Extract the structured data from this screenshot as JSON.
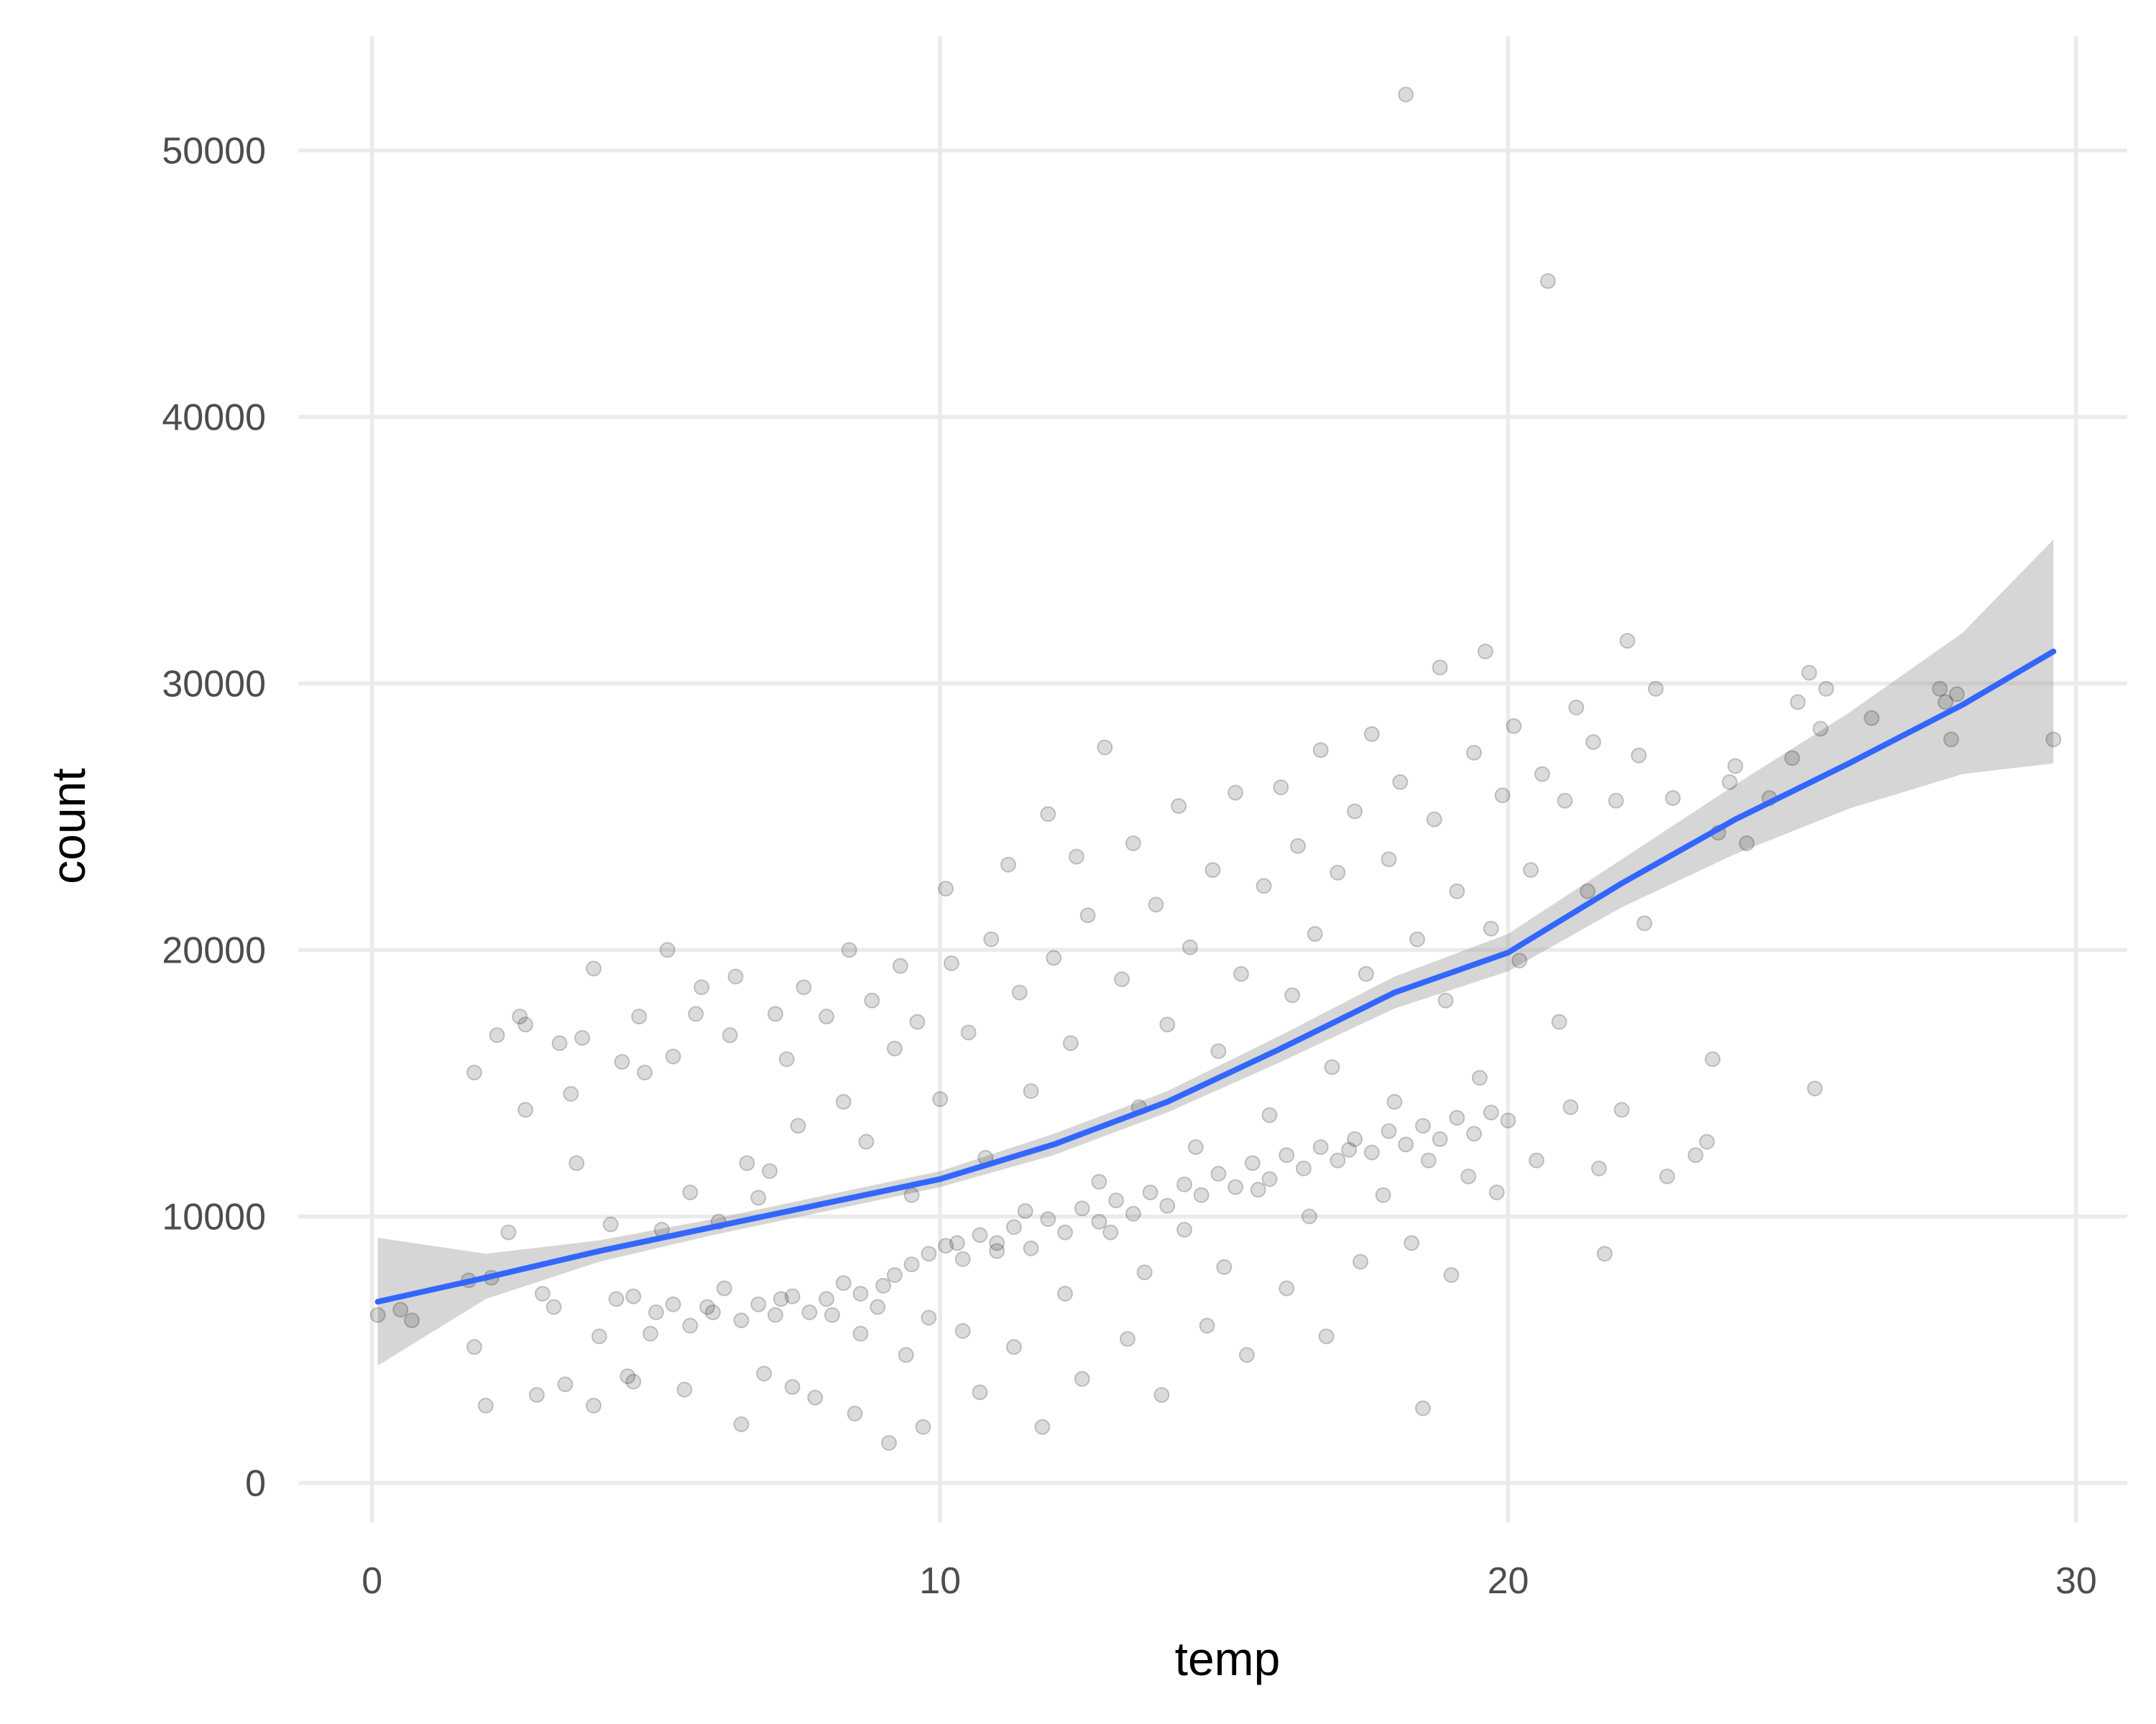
{
  "chart_data": {
    "type": "scatter",
    "title": "",
    "xlabel": "temp",
    "ylabel": "count",
    "xlim": [
      -1.3,
      30.9
    ],
    "ylim": [
      -1500,
      54300
    ],
    "x_ticks": [
      0,
      10,
      20,
      30
    ],
    "y_ticks": [
      0,
      10000,
      20000,
      30000,
      40000,
      50000
    ],
    "x_tick_labels": [
      "0",
      "10",
      "20",
      "30"
    ],
    "y_tick_labels": [
      "0",
      "10000",
      "20000",
      "30000",
      "40000",
      "50000"
    ],
    "grid": true,
    "legend": "none",
    "colors": {
      "points": "#000000",
      "smooth_line": "#3366FF",
      "confidence_band": "#999999",
      "grid": "#ebebeb"
    },
    "points": [
      [
        0.1,
        6300
      ],
      [
        0.5,
        6500
      ],
      [
        0.7,
        6100
      ],
      [
        1.7,
        7600
      ],
      [
        1.8,
        15400
      ],
      [
        1.8,
        5100
      ],
      [
        2.0,
        2900
      ],
      [
        2.1,
        7700
      ],
      [
        2.2,
        16800
      ],
      [
        2.4,
        9400
      ],
      [
        2.6,
        17500
      ],
      [
        2.7,
        14000
      ],
      [
        2.7,
        17200
      ],
      [
        2.9,
        3300
      ],
      [
        3.0,
        7100
      ],
      [
        3.2,
        6600
      ],
      [
        3.3,
        16500
      ],
      [
        3.4,
        3700
      ],
      [
        3.5,
        14600
      ],
      [
        3.6,
        12000
      ],
      [
        3.7,
        16700
      ],
      [
        3.9,
        19300
      ],
      [
        3.9,
        2900
      ],
      [
        4.0,
        5500
      ],
      [
        4.2,
        9700
      ],
      [
        4.4,
        15800
      ],
      [
        4.5,
        4000
      ],
      [
        4.6,
        3800
      ],
      [
        4.7,
        17500
      ],
      [
        4.8,
        15400
      ],
      [
        4.9,
        5600
      ],
      [
        5.1,
        9500
      ],
      [
        5.2,
        20000
      ],
      [
        5.3,
        16000
      ],
      [
        5.5,
        3500
      ],
      [
        5.6,
        10900
      ],
      [
        5.7,
        17600
      ],
      [
        5.8,
        18600
      ],
      [
        6.0,
        6400
      ],
      [
        6.1,
        9800
      ],
      [
        6.3,
        16800
      ],
      [
        6.4,
        19000
      ],
      [
        6.5,
        2200
      ],
      [
        6.6,
        12000
      ],
      [
        6.8,
        10700
      ],
      [
        6.9,
        4100
      ],
      [
        7.0,
        11700
      ],
      [
        7.1,
        17600
      ],
      [
        7.2,
        6900
      ],
      [
        7.3,
        15900
      ],
      [
        7.4,
        3600
      ],
      [
        7.5,
        13400
      ],
      [
        7.6,
        18600
      ],
      [
        7.8,
        3200
      ],
      [
        8.0,
        17500
      ],
      [
        8.1,
        6300
      ],
      [
        8.3,
        14300
      ],
      [
        8.4,
        20000
      ],
      [
        8.5,
        2600
      ],
      [
        8.6,
        5600
      ],
      [
        8.7,
        12800
      ],
      [
        8.8,
        18100
      ],
      [
        9.0,
        7400
      ],
      [
        9.1,
        1500
      ],
      [
        9.2,
        16300
      ],
      [
        9.3,
        19400
      ],
      [
        9.4,
        4800
      ],
      [
        9.5,
        10800
      ],
      [
        9.6,
        17300
      ],
      [
        9.7,
        2100
      ],
      [
        9.8,
        6200
      ],
      [
        10.0,
        14400
      ],
      [
        10.1,
        22300
      ],
      [
        10.2,
        19500
      ],
      [
        10.3,
        9000
      ],
      [
        10.4,
        5700
      ],
      [
        10.5,
        16900
      ],
      [
        10.7,
        3400
      ],
      [
        10.8,
        12200
      ],
      [
        10.9,
        20400
      ],
      [
        11.0,
        8700
      ],
      [
        11.2,
        23200
      ],
      [
        11.3,
        5100
      ],
      [
        11.4,
        18400
      ],
      [
        11.5,
        10200
      ],
      [
        11.6,
        14700
      ],
      [
        11.8,
        2100
      ],
      [
        11.9,
        25100
      ],
      [
        12.0,
        19700
      ],
      [
        12.2,
        7100
      ],
      [
        12.3,
        16500
      ],
      [
        12.4,
        23500
      ],
      [
        12.5,
        3900
      ],
      [
        12.6,
        21300
      ],
      [
        12.8,
        11300
      ],
      [
        12.9,
        27600
      ],
      [
        13.0,
        9400
      ],
      [
        13.2,
        18900
      ],
      [
        13.3,
        5400
      ],
      [
        13.4,
        24000
      ],
      [
        13.5,
        14100
      ],
      [
        13.6,
        7900
      ],
      [
        13.8,
        21700
      ],
      [
        13.9,
        3300
      ],
      [
        14.0,
        17200
      ],
      [
        14.2,
        25400
      ],
      [
        14.3,
        9500
      ],
      [
        14.4,
        20100
      ],
      [
        14.5,
        12600
      ],
      [
        14.7,
        5900
      ],
      [
        14.8,
        23000
      ],
      [
        14.9,
        16200
      ],
      [
        15.0,
        8100
      ],
      [
        15.2,
        25900
      ],
      [
        15.3,
        19100
      ],
      [
        15.4,
        4800
      ],
      [
        15.6,
        11000
      ],
      [
        15.7,
        22400
      ],
      [
        15.8,
        13800
      ],
      [
        16.0,
        26100
      ],
      [
        16.1,
        7300
      ],
      [
        16.2,
        18300
      ],
      [
        16.3,
        23900
      ],
      [
        16.5,
        10000
      ],
      [
        16.6,
        20600
      ],
      [
        16.7,
        27500
      ],
      [
        16.8,
        5500
      ],
      [
        16.9,
        15600
      ],
      [
        17.0,
        22900
      ],
      [
        17.2,
        12500
      ],
      [
        17.3,
        25200
      ],
      [
        17.4,
        8300
      ],
      [
        17.5,
        19100
      ],
      [
        17.6,
        28100
      ],
      [
        17.8,
        10800
      ],
      [
        17.9,
        23400
      ],
      [
        18.0,
        14300
      ],
      [
        18.1,
        26300
      ],
      [
        18.2,
        52100
      ],
      [
        18.3,
        9000
      ],
      [
        18.4,
        20400
      ],
      [
        18.5,
        2800
      ],
      [
        18.6,
        12100
      ],
      [
        18.7,
        24900
      ],
      [
        18.8,
        30600
      ],
      [
        18.9,
        18100
      ],
      [
        19.0,
        7800
      ],
      [
        19.1,
        22200
      ],
      [
        19.3,
        11500
      ],
      [
        19.4,
        27400
      ],
      [
        19.5,
        15200
      ],
      [
        19.6,
        31200
      ],
      [
        19.7,
        20800
      ],
      [
        19.8,
        10900
      ],
      [
        19.9,
        25800
      ],
      [
        20.0,
        13600
      ],
      [
        20.1,
        28400
      ],
      [
        20.2,
        19600
      ],
      [
        20.4,
        23000
      ],
      [
        20.5,
        12100
      ],
      [
        20.6,
        26600
      ],
      [
        20.7,
        45100
      ],
      [
        20.9,
        17300
      ],
      [
        21.0,
        25600
      ],
      [
        21.1,
        14100
      ],
      [
        21.2,
        29100
      ],
      [
        21.4,
        22200
      ],
      [
        21.5,
        27800
      ],
      [
        21.6,
        11800
      ],
      [
        21.7,
        8600
      ],
      [
        21.9,
        25600
      ],
      [
        22.0,
        14000
      ],
      [
        22.1,
        31600
      ],
      [
        22.3,
        27300
      ],
      [
        22.4,
        21000
      ],
      [
        22.6,
        29800
      ],
      [
        22.8,
        11500
      ],
      [
        22.9,
        25700
      ],
      [
        23.3,
        12300
      ],
      [
        23.5,
        12800
      ],
      [
        23.6,
        15900
      ],
      [
        23.7,
        24400
      ],
      [
        23.9,
        26300
      ],
      [
        24.0,
        26900
      ],
      [
        24.2,
        24000
      ],
      [
        24.6,
        25700
      ],
      [
        25.0,
        27200
      ],
      [
        25.1,
        29300
      ],
      [
        25.3,
        30400
      ],
      [
        25.4,
        14800
      ],
      [
        25.5,
        28300
      ],
      [
        25.6,
        29800
      ],
      [
        26.4,
        28700
      ],
      [
        27.6,
        29800
      ],
      [
        27.7,
        29300
      ],
      [
        27.8,
        27900
      ],
      [
        27.9,
        29600
      ],
      [
        29.6,
        27900
      ],
      [
        4.3,
        6900
      ],
      [
        4.6,
        7000
      ],
      [
        5.0,
        6400
      ],
      [
        5.3,
        6700
      ],
      [
        5.6,
        5900
      ],
      [
        5.9,
        6600
      ],
      [
        6.2,
        7300
      ],
      [
        6.5,
        6100
      ],
      [
        6.8,
        6700
      ],
      [
        7.1,
        6300
      ],
      [
        7.4,
        7000
      ],
      [
        7.7,
        6400
      ],
      [
        8.0,
        6900
      ],
      [
        8.3,
        7500
      ],
      [
        8.6,
        7100
      ],
      [
        8.9,
        6600
      ],
      [
        9.2,
        7800
      ],
      [
        9.5,
        8200
      ],
      [
        9.8,
        8600
      ],
      [
        10.1,
        8900
      ],
      [
        10.4,
        8400
      ],
      [
        10.7,
        9300
      ],
      [
        11.0,
        9000
      ],
      [
        11.3,
        9600
      ],
      [
        11.6,
        8800
      ],
      [
        11.9,
        9900
      ],
      [
        12.2,
        9400
      ],
      [
        12.5,
        10300
      ],
      [
        12.8,
        9800
      ],
      [
        13.1,
        10600
      ],
      [
        13.4,
        10100
      ],
      [
        13.7,
        10900
      ],
      [
        14.0,
        10400
      ],
      [
        14.3,
        11200
      ],
      [
        14.6,
        10800
      ],
      [
        14.9,
        11600
      ],
      [
        15.2,
        11100
      ],
      [
        15.5,
        12000
      ],
      [
        15.8,
        11400
      ],
      [
        16.1,
        12300
      ],
      [
        16.4,
        11800
      ],
      [
        16.7,
        12600
      ],
      [
        17.0,
        12100
      ],
      [
        17.3,
        12900
      ],
      [
        17.6,
        12400
      ],
      [
        17.9,
        13200
      ],
      [
        18.2,
        12700
      ],
      [
        18.5,
        13400
      ],
      [
        18.8,
        12900
      ],
      [
        19.1,
        13700
      ],
      [
        19.4,
        13100
      ],
      [
        19.7,
        13900
      ]
    ],
    "smooth": {
      "x": [
        0.1,
        2,
        4,
        6,
        8,
        10,
        12,
        14,
        16,
        18,
        20,
        22,
        24,
        26,
        28,
        29.6
      ],
      "y": [
        6800,
        7700,
        8700,
        9600,
        10500,
        11400,
        12700,
        14300,
        16300,
        18400,
        19900,
        22500,
        24900,
        27000,
        29200,
        31200
      ],
      "lower": [
        4400,
        6900,
        8300,
        9300,
        10200,
        11100,
        12300,
        13900,
        15800,
        17800,
        19200,
        21600,
        23600,
        25300,
        26600,
        27000
      ],
      "upper": [
        9200,
        8600,
        9100,
        9900,
        10800,
        11700,
        13100,
        14700,
        16800,
        19000,
        20600,
        23400,
        26200,
        28900,
        31900,
        35400
      ]
    }
  }
}
